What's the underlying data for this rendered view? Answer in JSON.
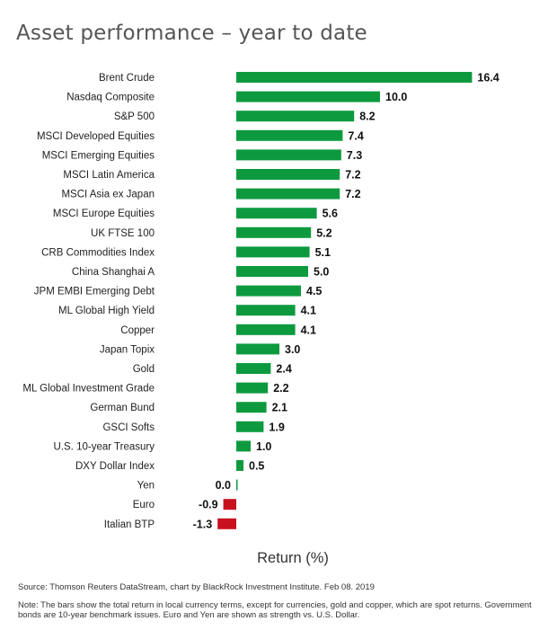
{
  "title": "Asset performance – year to date",
  "source": "Source: Thomson Reuters DataStream, chart by BlackRock Investment Institute. Feb 08. 2019",
  "note": "Note: The bars show the total return in local currency terms, except for currencies, gold and copper, which are spot returns. Government bonds are 10-year benchmark issues. Euro and Yen are shown as strength vs. U.S. Dollar.",
  "colors": {
    "positive": "#0d9a3f",
    "negative": "#c8101e"
  },
  "chart_data": {
    "type": "bar",
    "orientation": "horizontal",
    "title": "Asset performance – year to date",
    "xlabel": "Return (%)",
    "ylabel": "",
    "grid": false,
    "categories": [
      "Brent Crude",
      "Nasdaq Composite",
      "S&P 500",
      "MSCI Developed Equities",
      "MSCI Emerging Equities",
      "MSCI Latin America",
      "MSCI Asia ex Japan",
      "MSCI Europe Equities",
      "UK FTSE 100",
      "CRB Commodities Index",
      "China Shanghai A",
      "JPM EMBI Emerging Debt",
      "ML Global High Yield",
      "Copper",
      "Japan Topix",
      "Gold",
      "ML Global Investment Grade",
      "German Bund",
      "GSCI Softs",
      "U.S. 10-year Treasury",
      "DXY Dollar Index",
      "Yen",
      "Euro",
      "Italian BTP"
    ],
    "values": [
      16.4,
      10.0,
      8.2,
      7.4,
      7.3,
      7.2,
      7.2,
      5.6,
      5.2,
      5.1,
      5.0,
      4.5,
      4.1,
      4.1,
      3.0,
      2.4,
      2.2,
      2.1,
      1.9,
      1.0,
      0.5,
      0.0,
      -0.9,
      -1.3
    ],
    "labels": [
      "16.4",
      "10.0",
      "8.2",
      "7.4",
      "7.3",
      "7.2",
      "7.2",
      "5.6",
      "5.2",
      "5.1",
      "5.0",
      "4.5",
      "4.1",
      "4.1",
      "3.0",
      "2.4",
      "2.2",
      "2.1",
      "1.9",
      "1.0",
      "0.5",
      "0.0",
      "-0.9",
      "-1.3"
    ]
  }
}
